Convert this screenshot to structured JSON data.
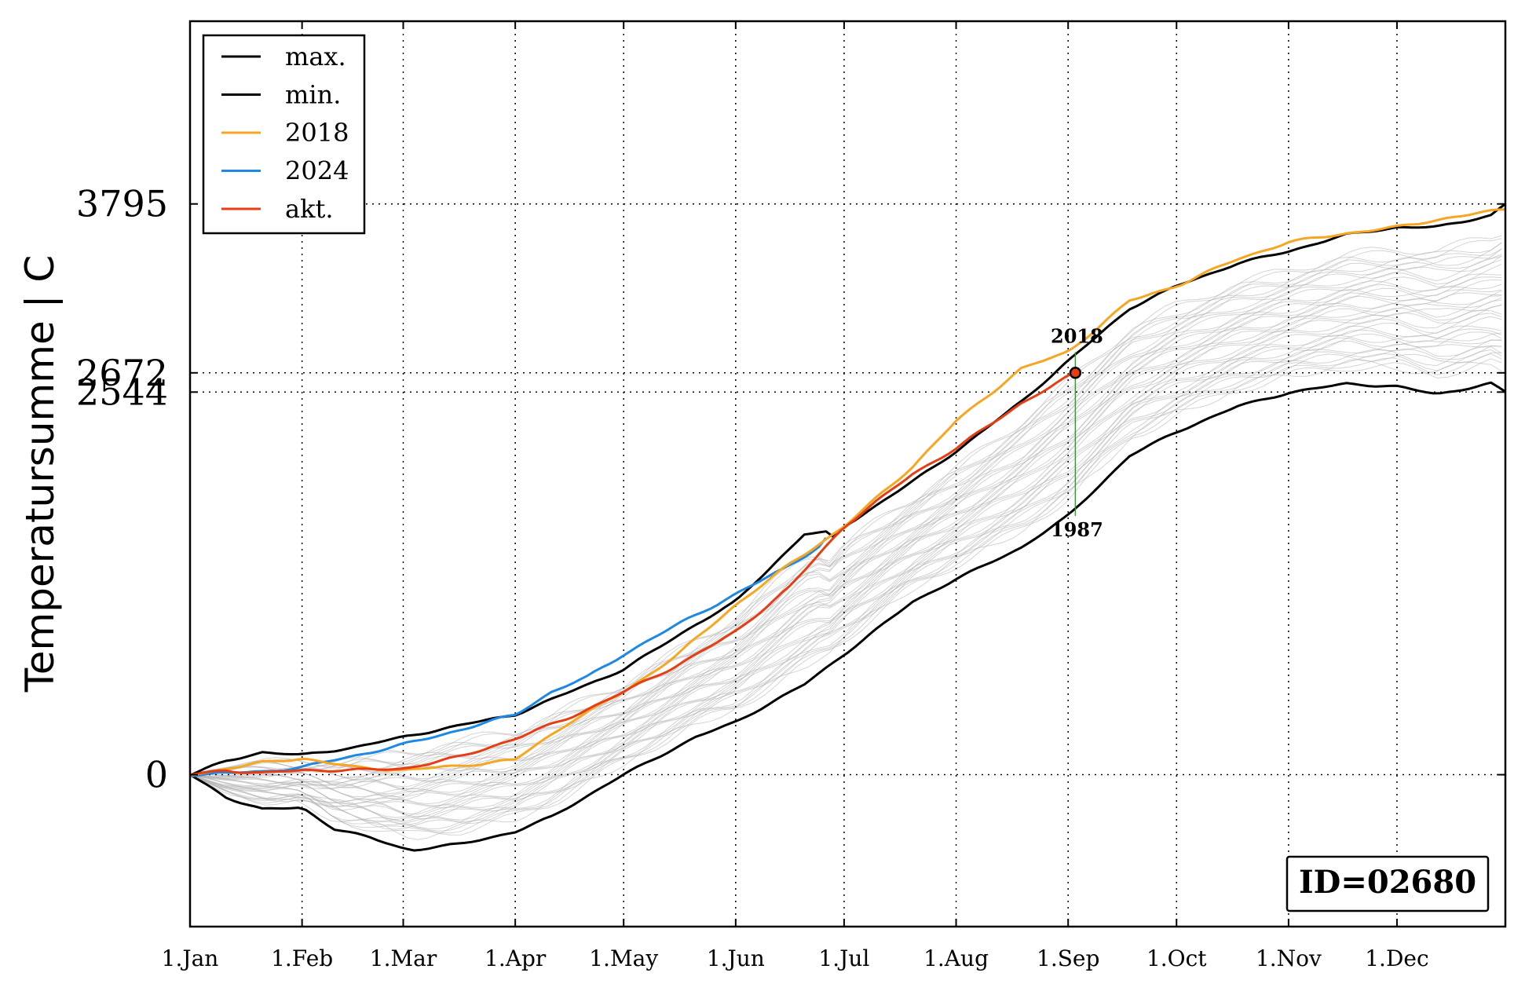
{
  "chart_data": {
    "type": "line",
    "ylabel": "Temperatursumme | C",
    "x_range": [
      "1.Jan",
      "31.Dec"
    ],
    "x_ticks": [
      "1.Jan",
      "1.Feb",
      "1.Mar",
      "1.Apr",
      "1.May",
      "1.Jun",
      "1.Jul",
      "1.Aug",
      "1.Sep",
      "1.Oct",
      "1.Nov",
      "1.Dec"
    ],
    "x_tick_days": [
      0,
      31,
      59,
      90,
      120,
      151,
      181,
      212,
      243,
      273,
      304,
      334
    ],
    "y_ticks": [
      0,
      2544,
      2672,
      3795
    ],
    "ylim": [
      -1010,
      5010
    ],
    "grid": "dotted",
    "legend_position": "upper-left",
    "series": [
      {
        "name": "max.",
        "color": "#000000",
        "x": [
          0,
          10,
          20,
          31,
          45,
          59,
          75,
          90,
          110,
          120,
          140,
          151,
          170,
          176,
          177,
          181,
          200,
          212,
          230,
          243,
          260,
          273,
          290,
          304,
          320,
          334,
          345,
          360,
          364
        ],
        "y": [
          0,
          90,
          150,
          130,
          180,
          250,
          330,
          400,
          600,
          700,
          1000,
          1150,
          1600,
          1610,
          1550,
          1650,
          1950,
          2150,
          2480,
          2750,
          3100,
          3250,
          3400,
          3480,
          3590,
          3640,
          3640,
          3720,
          3795
        ]
      },
      {
        "name": "min.",
        "color": "#000000",
        "x": [
          0,
          10,
          20,
          31,
          40,
          50,
          59,
          62,
          75,
          90,
          100,
          120,
          140,
          151,
          170,
          181,
          200,
          212,
          230,
          243,
          260,
          273,
          290,
          304,
          320,
          334,
          345,
          360,
          364
        ],
        "y": [
          0,
          -150,
          -230,
          -220,
          -360,
          -420,
          -490,
          -500,
          -460,
          -380,
          -280,
          0,
          250,
          350,
          600,
          800,
          1150,
          1300,
          1510,
          1720,
          2120,
          2280,
          2450,
          2540,
          2600,
          2580,
          2530,
          2600,
          2544
        ]
      },
      {
        "name": "2018",
        "color": "#f5a623",
        "x": [
          0,
          10,
          20,
          31,
          45,
          59,
          75,
          90,
          105,
          120,
          135,
          151,
          166,
          181,
          200,
          212,
          230,
          243,
          260,
          273,
          290,
          304,
          320,
          334,
          345,
          364
        ],
        "y": [
          0,
          40,
          80,
          110,
          50,
          30,
          60,
          100,
          350,
          550,
          800,
          1130,
          1400,
          1650,
          2050,
          2350,
          2700,
          2810,
          3150,
          3250,
          3430,
          3540,
          3600,
          3640,
          3690,
          3760
        ]
      },
      {
        "name": "2024",
        "color": "#1e88e5",
        "x": [
          0,
          10,
          20,
          31,
          50,
          59,
          75,
          90,
          100,
          110,
          120,
          135,
          151,
          165,
          175,
          177
        ],
        "y": [
          0,
          10,
          20,
          50,
          150,
          200,
          300,
          400,
          550,
          650,
          800,
          1000,
          1200,
          1380,
          1530,
          1610
        ]
      },
      {
        "name": "akt.",
        "color": "#e53e15",
        "x": [
          0,
          10,
          20,
          31,
          45,
          59,
          75,
          90,
          105,
          120,
          135,
          151,
          166,
          181,
          200,
          212,
          230,
          245
        ],
        "y": [
          0,
          30,
          10,
          30,
          30,
          40,
          120,
          240,
          380,
          550,
          730,
          950,
          1250,
          1650,
          2000,
          2170,
          2470,
          2672
        ]
      }
    ],
    "current_point": {
      "x": 245,
      "y": 2672
    },
    "range_marker": {
      "x": 245,
      "top": 2810,
      "bottom": 1720
    },
    "annotations": [
      {
        "text": "2018",
        "x": 245,
        "y": 2810
      },
      {
        "text": "1987",
        "x": 245,
        "y": 1720
      }
    ],
    "id_label": "ID=02680",
    "background_series_color": "#b0b0b0"
  }
}
